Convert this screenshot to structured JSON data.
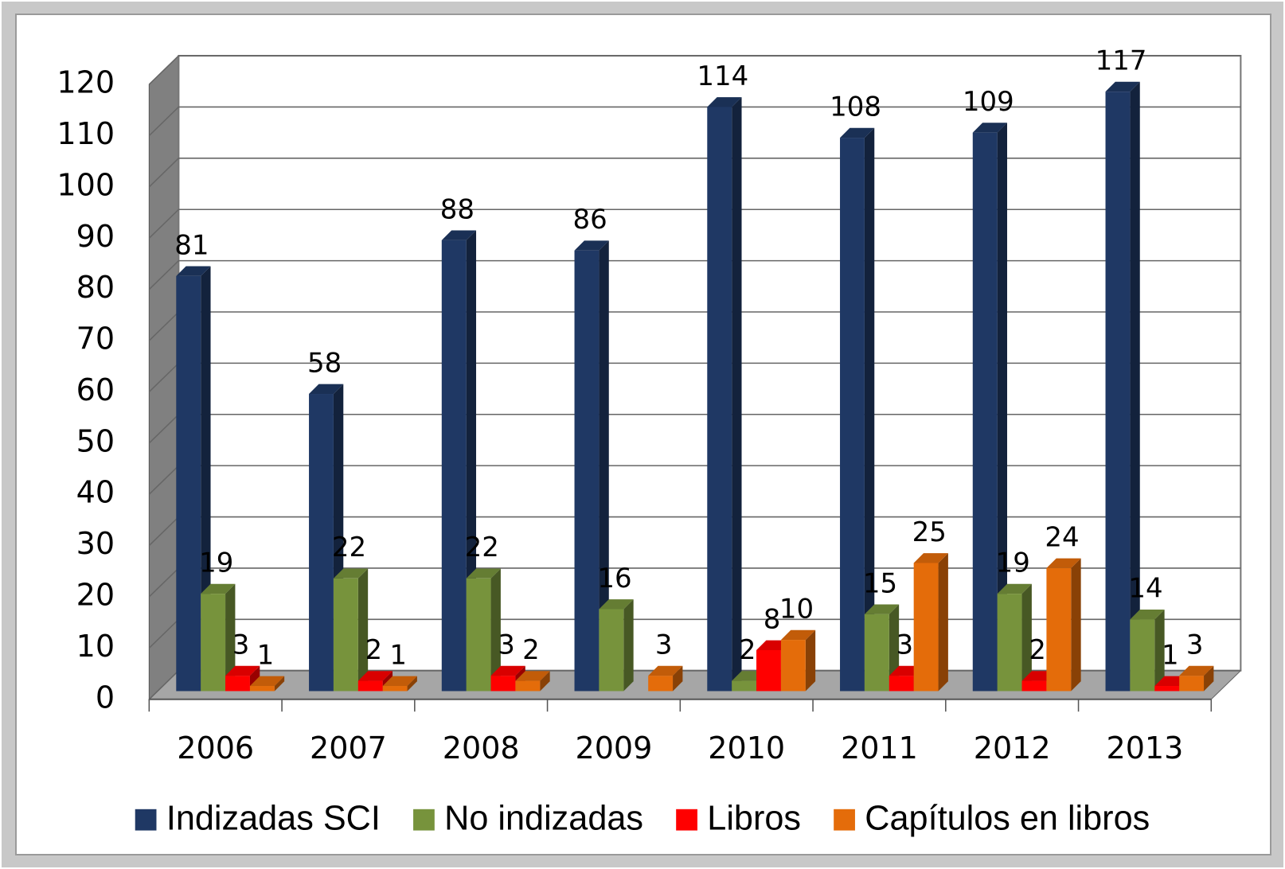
{
  "chart_data": {
    "type": "bar3d",
    "categories": [
      "2006",
      "2007",
      "2008",
      "2009",
      "2010",
      "2011",
      "2012",
      "2013"
    ],
    "series": [
      {
        "name": "Indizadas SCI",
        "color": "#1f3864",
        "values": [
          81,
          58,
          88,
          86,
          114,
          108,
          109,
          117
        ]
      },
      {
        "name": "No indizadas",
        "color": "#77933c",
        "values": [
          19,
          22,
          22,
          16,
          2,
          15,
          19,
          14
        ]
      },
      {
        "name": "Libros",
        "color": "#ff0000",
        "values": [
          3,
          2,
          3,
          null,
          8,
          3,
          2,
          1
        ]
      },
      {
        "name": "Capítulos en libros",
        "color": "#e46c0a",
        "values": [
          1,
          1,
          2,
          3,
          10,
          25,
          24,
          3
        ]
      }
    ],
    "ylim": [
      0,
      120
    ],
    "yticks": [
      0,
      10,
      20,
      30,
      40,
      50,
      60,
      70,
      80,
      90,
      100,
      110,
      120
    ],
    "grid": true,
    "legend": "bottom"
  }
}
